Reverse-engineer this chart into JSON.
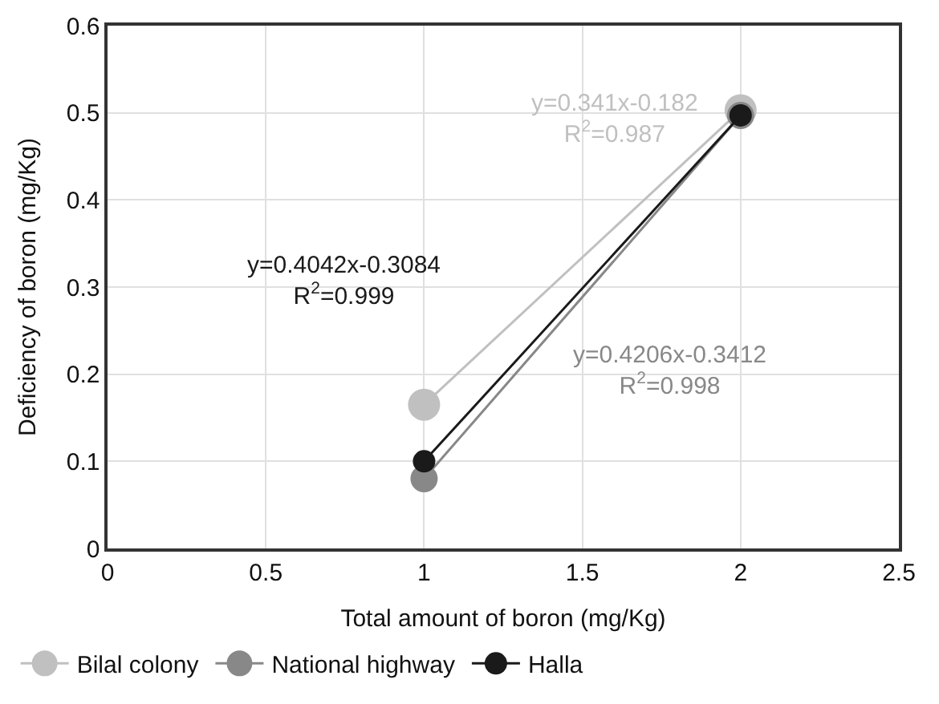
{
  "chart_data": {
    "type": "line",
    "xlabel": "Total amount of boron (mg/Kg)",
    "ylabel": "Deficiency of boron (mg/Kg)",
    "x": [
      1,
      2
    ],
    "series": [
      {
        "name": "Bilal colony",
        "color": "#c0c0c0",
        "values": [
          0.165,
          0.503
        ]
      },
      {
        "name": "National highway",
        "color": "#888888",
        "values": [
          0.08,
          0.497
        ]
      },
      {
        "name": "Halla",
        "color": "#1a1a1a",
        "values": [
          0.1,
          0.497
        ]
      }
    ],
    "annotations": [
      "y=0.341x-0.182\nR$^{2}$=0.987",
      "y=0.4206x-0.3412\nR$^{2}$=0.998",
      "y=0.4042x-0.3084\nR$^{2}$=0.999"
    ],
    "xlim": [
      0,
      2.5
    ],
    "xticks": [
      0,
      0.5,
      1,
      1.5,
      2,
      2.5
    ],
    "ylim": [
      0,
      0.6
    ],
    "yticks": [
      0,
      0.1,
      0.2,
      0.3,
      0.4,
      0.5,
      0.6
    ],
    "grid": true,
    "legend": "bottom",
    "marker": "circle",
    "line_style": "solid"
  }
}
